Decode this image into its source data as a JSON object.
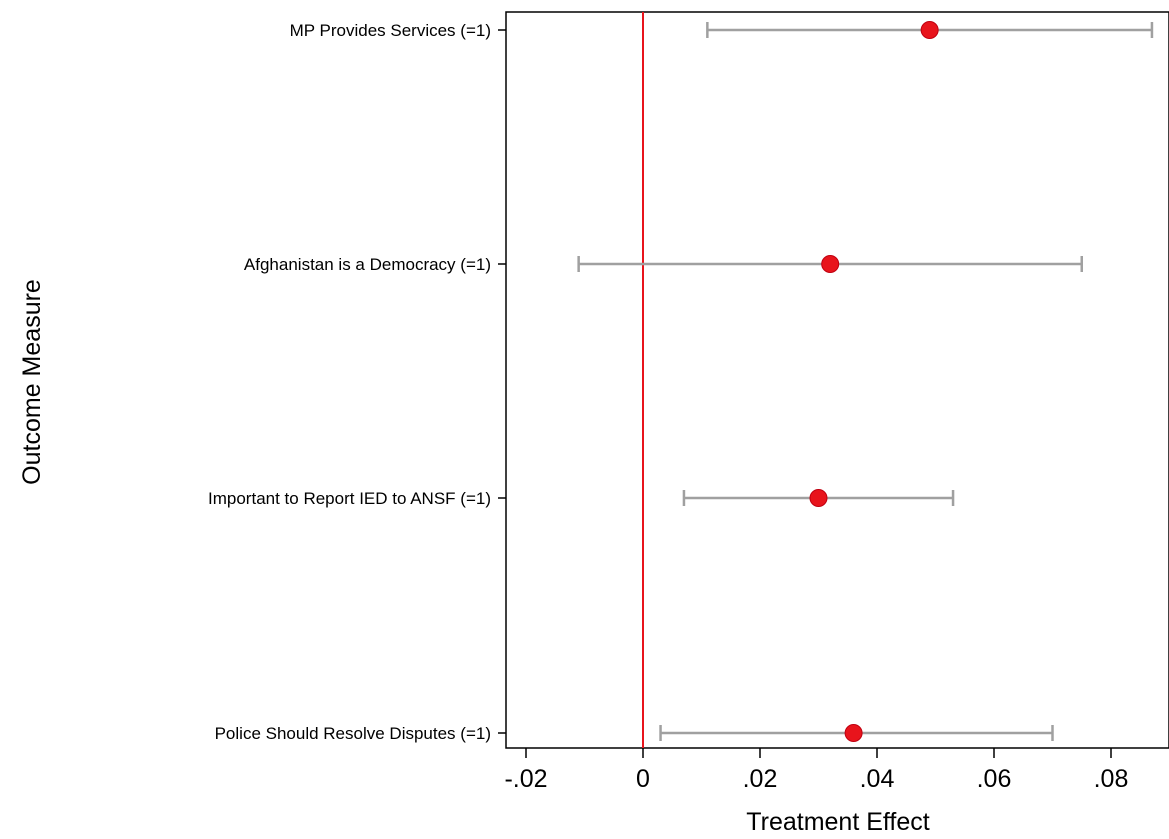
{
  "chart_data": {
    "type": "scatter",
    "subtype": "coefficient-plot",
    "title": "",
    "xlabel": "Treatment Effect",
    "ylabel": "Outcome Measure",
    "xlim": [
      -0.024,
      0.089
    ],
    "x_ticks": [
      -0.02,
      0,
      0.02,
      0.04,
      0.06,
      0.08
    ],
    "x_tick_labels": [
      "-.02",
      "0",
      ".02",
      ".04",
      ".06",
      ".08"
    ],
    "reference_line": {
      "x": 0,
      "color": "#e8141c"
    },
    "grid": false,
    "legend": "none",
    "point_color": "#e8141c",
    "ci_color": "#a0a0a0",
    "categories": [
      "MP Provides Services (=1)",
      "Afghanistan is a Democracy (=1)",
      "Important to Report IED to ANSF (=1)",
      "Police Should Resolve Disputes (=1)"
    ],
    "estimates": [
      0.049,
      0.032,
      0.03,
      0.036
    ],
    "ci_lower": [
      0.011,
      -0.011,
      0.007,
      0.003
    ],
    "ci_upper": [
      0.087,
      0.075,
      0.053,
      0.07
    ]
  }
}
